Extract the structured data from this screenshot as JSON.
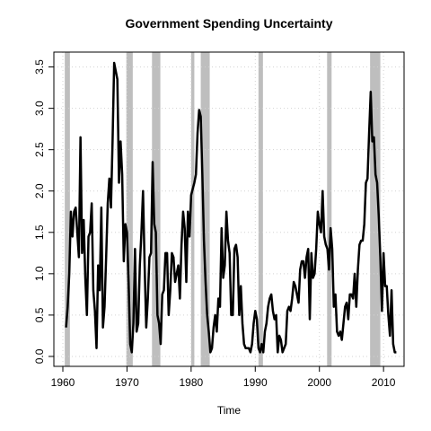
{
  "chart_data": {
    "type": "line",
    "title": "Government Spending Uncertainty",
    "x_label": "Time",
    "grid": true,
    "shade_color": "#bebebe",
    "shaded_periods": [
      [
        1960.3,
        1961.1
      ],
      [
        1969.9,
        1970.9
      ],
      [
        1973.9,
        1975.2
      ],
      [
        1980.0,
        1980.5
      ],
      [
        1981.5,
        1982.9
      ],
      [
        1990.5,
        1991.2
      ],
      [
        2001.2,
        2001.9
      ],
      [
        2007.9,
        2009.5
      ]
    ],
    "xlim": [
      1958.6,
      2013.2
    ],
    "ylim": [
      -0.12,
      3.68
    ],
    "xticks": [
      1960,
      1970,
      1980,
      1990,
      2000,
      2010
    ],
    "yticks": [
      {
        "value": 0,
        "label": "0.0"
      },
      0.5,
      {
        "value": 1,
        "label": "1.0"
      },
      1.5,
      {
        "value": 2,
        "label": "2.0"
      },
      2.5,
      {
        "value": 3,
        "label": "3.0"
      },
      3.5
    ],
    "x": [
      1960.5,
      1960.75,
      1961,
      1961.25,
      1961.5,
      1961.75,
      1962,
      1962.25,
      1962.5,
      1962.75,
      1963,
      1963.25,
      1963.5,
      1963.75,
      1964,
      1964.25,
      1964.5,
      1964.75,
      1965,
      1965.25,
      1965.5,
      1965.75,
      1966,
      1966.25,
      1966.5,
      1966.75,
      1967,
      1967.25,
      1967.5,
      1967.75,
      1968,
      1968.25,
      1968.5,
      1968.75,
      1969,
      1969.25,
      1969.5,
      1969.75,
      1970,
      1970.25,
      1970.5,
      1970.75,
      1971,
      1971.25,
      1971.5,
      1971.75,
      1972,
      1972.25,
      1972.5,
      1972.75,
      1973,
      1973.25,
      1973.5,
      1973.75,
      1974,
      1974.25,
      1974.5,
      1974.75,
      1975,
      1975.25,
      1975.5,
      1975.75,
      1976,
      1976.25,
      1976.5,
      1976.75,
      1977,
      1977.25,
      1977.5,
      1977.75,
      1978,
      1978.25,
      1978.5,
      1978.75,
      1979,
      1979.25,
      1979.5,
      1979.75,
      1980,
      1980.5,
      1980.75,
      1981,
      1981.25,
      1981.5,
      1981.75,
      1982,
      1982.25,
      1982.5,
      1982.75,
      1983,
      1983.25,
      1983.5,
      1983.75,
      1984,
      1984.25,
      1984.5,
      1984.75,
      1985,
      1985.25,
      1985.5,
      1985.75,
      1986,
      1986.25,
      1986.5,
      1986.75,
      1987,
      1987.25,
      1987.5,
      1987.75,
      1988,
      1988.25,
      1988.5,
      1988.75,
      1989,
      1989.25,
      1989.5,
      1989.75,
      1990,
      1990.25,
      1990.5,
      1990.75,
      1991,
      1991.25,
      1991.5,
      1991.75,
      1992,
      1992.25,
      1992.5,
      1992.75,
      1993,
      1993.25,
      1993.5,
      1993.75,
      1994,
      1994.25,
      1994.5,
      1994.75,
      1995,
      1995.25,
      1995.5,
      1995.75,
      1996,
      1996.25,
      1996.5,
      1996.75,
      1997,
      1997.25,
      1997.5,
      1997.75,
      1998,
      1998.25,
      1998.5,
      1998.75,
      1999,
      1999.25,
      1999.5,
      1999.75,
      2000,
      2000.25,
      2000.5,
      2000.75,
      2001,
      2001.25,
      2001.5,
      2001.75,
      2002,
      2002.25,
      2002.5,
      2002.75,
      2003,
      2003.25,
      2003.5,
      2003.75,
      2004,
      2004.25,
      2004.5,
      2004.75,
      2005,
      2005.25,
      2005.5,
      2005.75,
      2006,
      2006.25,
      2006.5,
      2006.75,
      2007,
      2007.25,
      2007.5,
      2007.75,
      2008,
      2008.25,
      2008.5,
      2008.75,
      2009,
      2009.25,
      2009.5,
      2009.75,
      2010,
      2010.25,
      2010.5,
      2010.75,
      2011,
      2011.25,
      2011.5,
      2011.75,
      2012
    ],
    "series": [
      {
        "name": "Government Spending Uncertainty",
        "color": "#000000",
        "values": [
          0.35,
          0.6,
          1.0,
          1.75,
          1.45,
          1.75,
          1.8,
          1.5,
          1.2,
          2.65,
          1.25,
          1.65,
          0.95,
          0.5,
          1.45,
          1.5,
          1.85,
          0.8,
          0.55,
          0.1,
          1.1,
          0.8,
          1.8,
          0.35,
          0.6,
          1.2,
          1.85,
          2.15,
          1.8,
          2.6,
          3.55,
          3.45,
          3.35,
          2.1,
          2.6,
          2.2,
          1.15,
          1.6,
          1.5,
          0.9,
          0.15,
          0.05,
          0.4,
          1.3,
          0.3,
          0.4,
          1.1,
          1.5,
          2.0,
          1.1,
          0.35,
          0.7,
          1.2,
          1.25,
          2.35,
          1.6,
          1.5,
          0.5,
          0.4,
          0.15,
          0.75,
          0.8,
          1.25,
          1.25,
          0.5,
          0.8,
          1.25,
          1.2,
          0.9,
          1.0,
          1.1,
          0.7,
          1.35,
          1.75,
          1.55,
          0.9,
          1.75,
          1.45,
          1.95,
          2.1,
          2.2,
          2.7,
          2.98,
          2.9,
          2.2,
          1.4,
          0.9,
          0.5,
          0.3,
          0.05,
          0.1,
          0.35,
          0.5,
          0.3,
          0.7,
          0.6,
          1.55,
          0.95,
          1.1,
          1.75,
          1.4,
          1.25,
          0.5,
          0.5,
          1.3,
          1.35,
          1.2,
          0.5,
          0.85,
          0.4,
          0.15,
          0.1,
          0.1,
          0.1,
          0.05,
          0.15,
          0.4,
          0.55,
          0.45,
          0.1,
          0.05,
          0.15,
          0.05,
          0.3,
          0.4,
          0.6,
          0.7,
          0.75,
          0.55,
          0.45,
          0.5,
          0.05,
          0.25,
          0.2,
          0.05,
          0.1,
          0.15,
          0.55,
          0.6,
          0.55,
          0.7,
          0.9,
          0.85,
          0.75,
          0.65,
          1.05,
          1.15,
          1.15,
          0.95,
          1.2,
          1.3,
          0.45,
          1.25,
          0.95,
          1.0,
          1.3,
          1.75,
          1.6,
          1.5,
          2.0,
          1.45,
          1.35,
          1.3,
          1.05,
          1.55,
          1.3,
          0.6,
          0.75,
          0.3,
          0.25,
          0.3,
          0.2,
          0.4,
          0.6,
          0.65,
          0.45,
          0.75,
          0.75,
          0.7,
          1.0,
          0.6,
          1.05,
          1.35,
          1.4,
          1.4,
          1.6,
          2.1,
          2.15,
          2.7,
          3.2,
          2.6,
          2.65,
          2.2,
          2.1,
          1.7,
          1.2,
          0.55,
          1.25,
          0.85,
          0.85,
          0.5,
          0.25,
          0.8,
          0.15,
          0.05,
          0.05
        ]
      }
    ]
  }
}
